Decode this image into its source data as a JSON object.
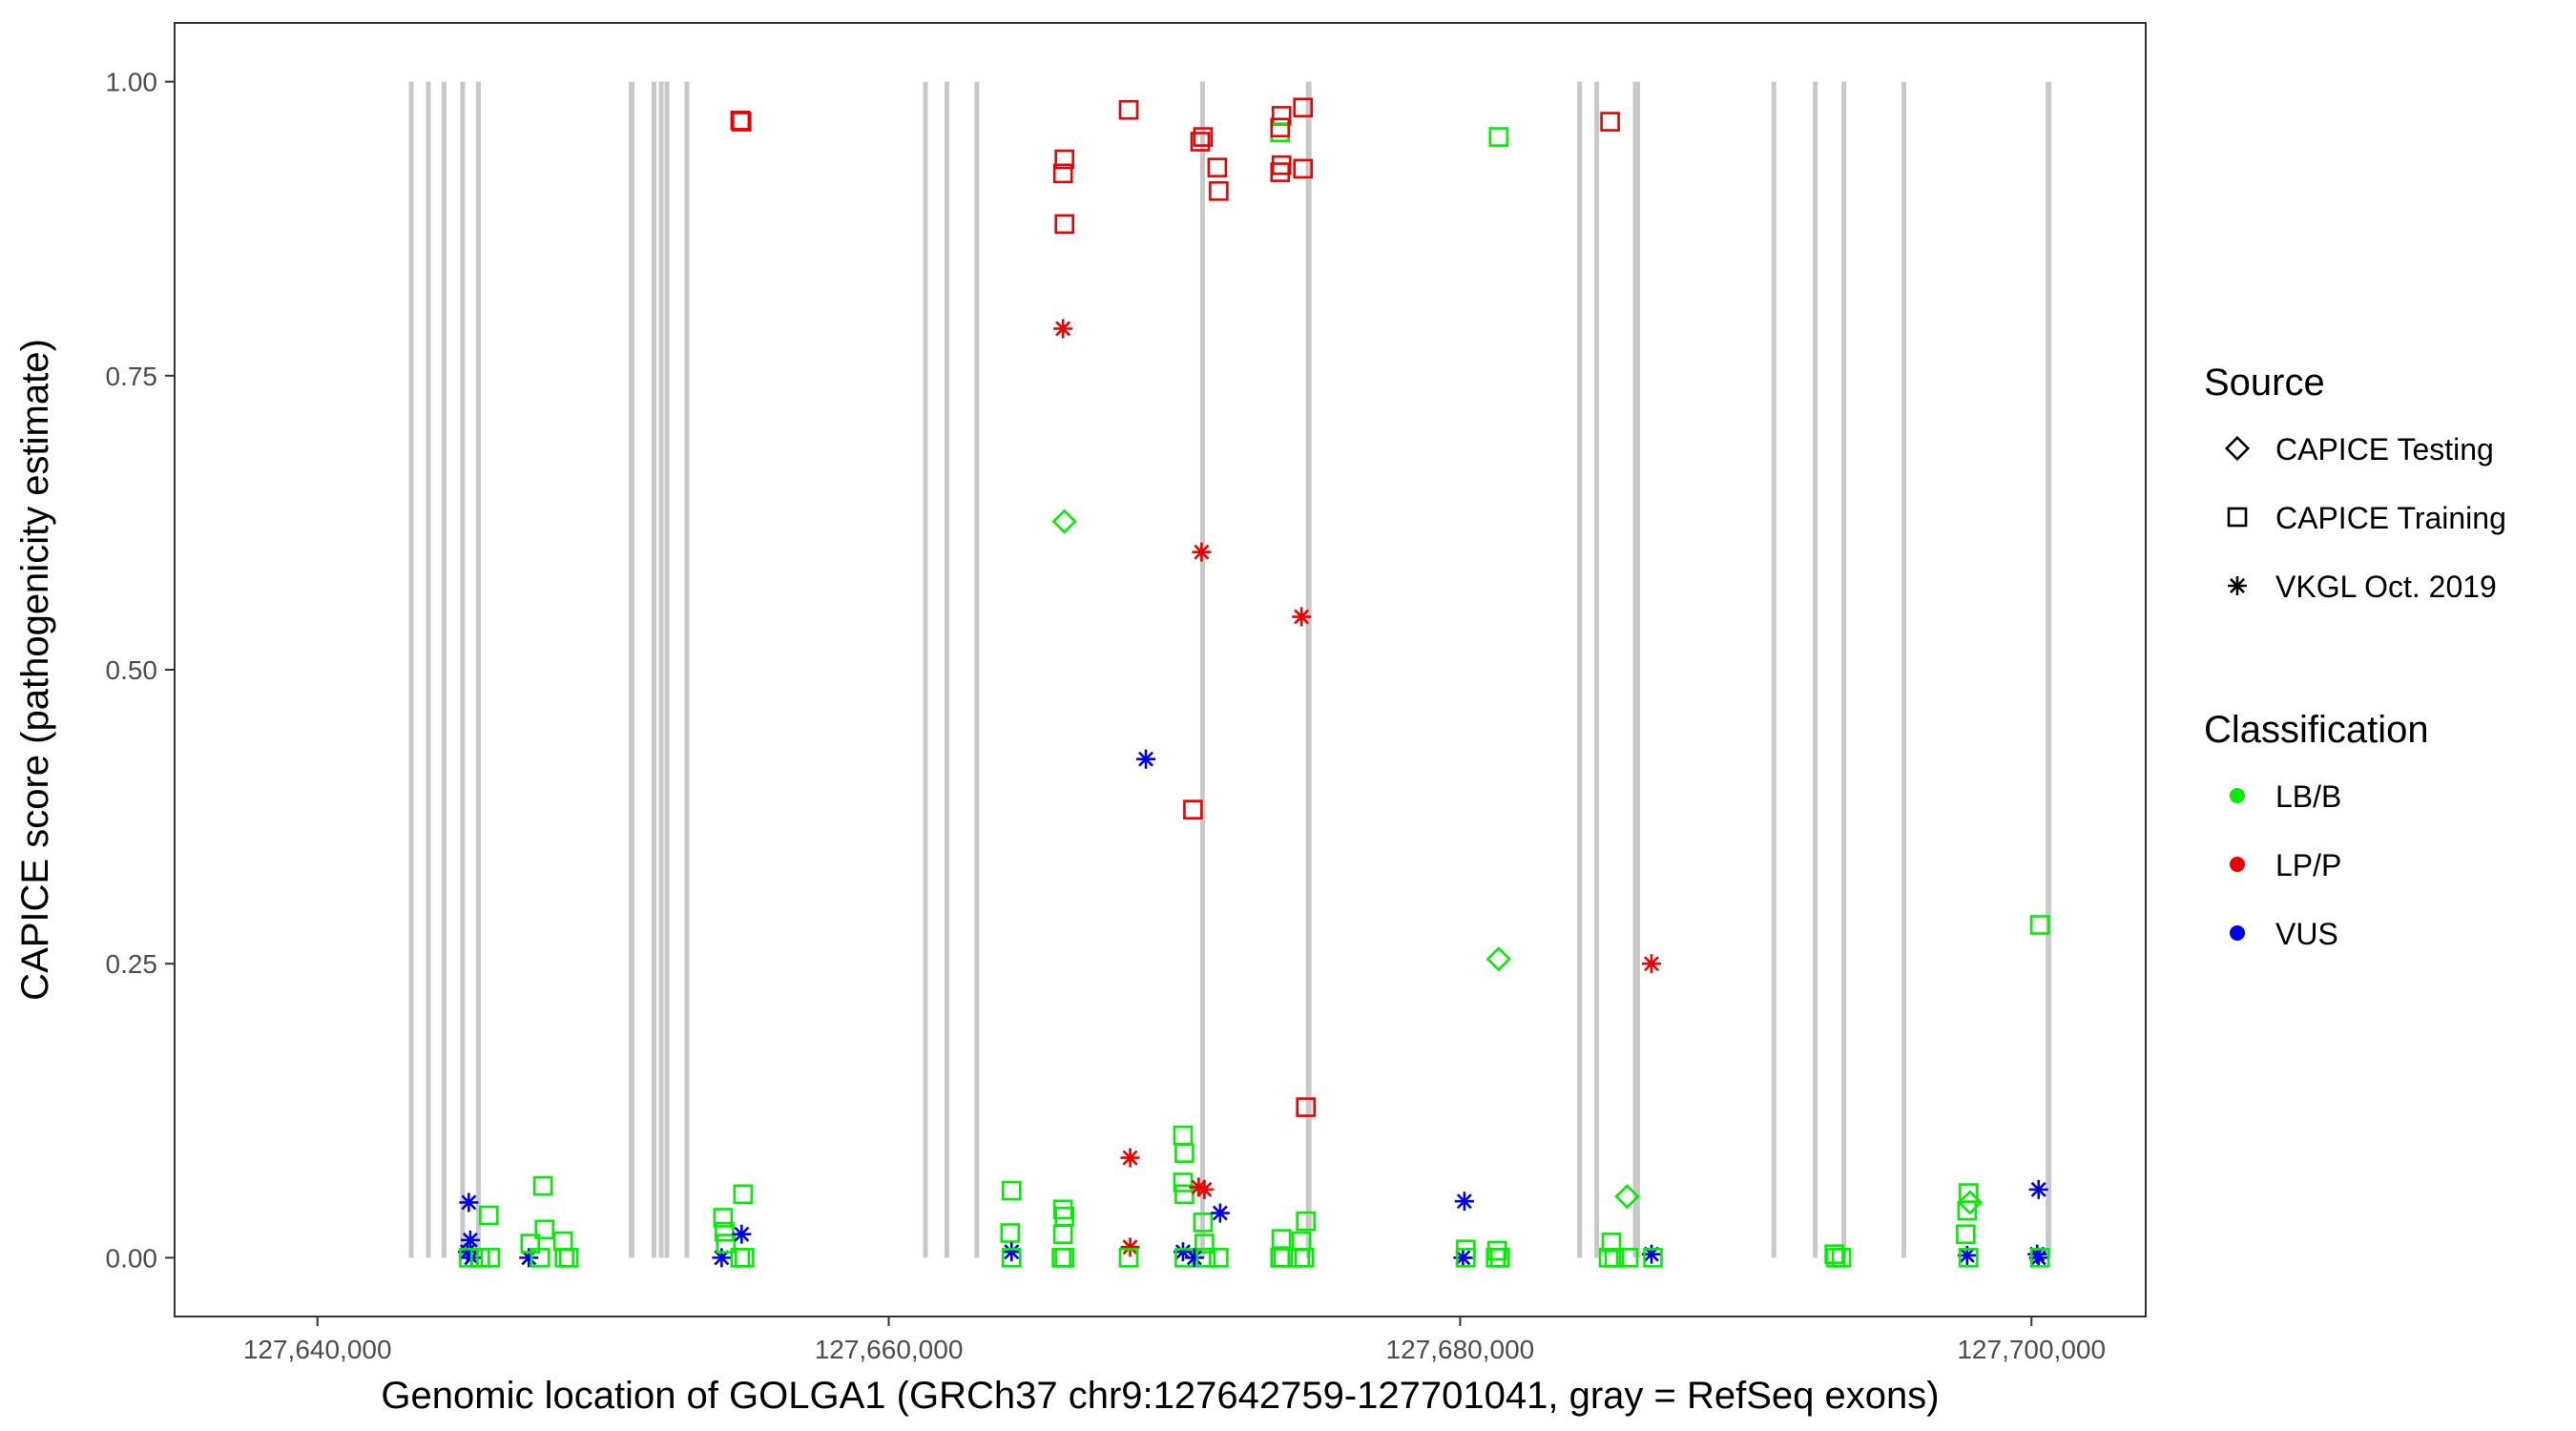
{
  "chart_data": {
    "type": "scatter",
    "xlabel": "Genomic location of GOLGA1 (GRCh37 chr9:127642759-127701041, gray = RefSeq exons)",
    "ylabel": "CAPICE score (pathogenicity estimate)",
    "xlim": [
      127635000,
      127704000
    ],
    "ylim": [
      -0.05,
      1.05
    ],
    "x_ticks": [
      127640000,
      127660000,
      127680000,
      127700000
    ],
    "x_tick_labels": [
      "127,640,000",
      "127,660,000",
      "127,680,000",
      "127,700,000"
    ],
    "y_ticks": [
      0,
      0.25,
      0.5,
      0.75,
      1.0
    ],
    "y_tick_labels": [
      "0.00",
      "0.25",
      "0.50",
      "0.75",
      "1.00"
    ],
    "grid": false,
    "exon_color": "#c8c8c8",
    "exons": [
      [
        127643200,
        127643300
      ],
      [
        127643800,
        127643900
      ],
      [
        127644350,
        127644450
      ],
      [
        127645000,
        127645100
      ],
      [
        127645550,
        127645650
      ],
      [
        127650900,
        127651100
      ],
      [
        127651700,
        127651800
      ],
      [
        127651950,
        127652050
      ],
      [
        127652150,
        127652250
      ],
      [
        127652850,
        127652950
      ],
      [
        127661200,
        127661300
      ],
      [
        127661950,
        127662050
      ],
      [
        127663000,
        127663100
      ],
      [
        127670900,
        127671050
      ],
      [
        127674600,
        127674800
      ],
      [
        127684100,
        127684250
      ],
      [
        127684700,
        127684800
      ],
      [
        127686050,
        127686300
      ],
      [
        127690900,
        127691000
      ],
      [
        127692350,
        127692450
      ],
      [
        127693350,
        127693450
      ],
      [
        127695450,
        127695550
      ],
      [
        127700500,
        127700700
      ]
    ],
    "legend": {
      "source_title": "Source",
      "source_items": [
        {
          "label": "CAPICE Testing",
          "shape": "diamond"
        },
        {
          "label": "CAPICE Training",
          "shape": "square"
        },
        {
          "label": "VKGL Oct. 2019",
          "shape": "asterisk"
        }
      ],
      "class_title": "Classification",
      "class_items": [
        {
          "label": "LB/B",
          "color": "#00ee00"
        },
        {
          "label": "LP/P",
          "color": "#ee0000"
        },
        {
          "label": "VUS",
          "color": "#0000ee"
        }
      ]
    },
    "colors": {
      "LB/B": "#00ee00",
      "LP/P": "#ee0000",
      "VUS": "#0000ee"
    },
    "points": [
      {
        "x": 127645300,
        "y": 0.047,
        "source": "VKGL Oct. 2019",
        "class": "VUS"
      },
      {
        "x": 127645350,
        "y": 0.015,
        "source": "VKGL Oct. 2019",
        "class": "VUS"
      },
      {
        "x": 127645250,
        "y": 0.005,
        "source": "VKGL Oct. 2019",
        "class": "VUS"
      },
      {
        "x": 127645400,
        "y": 0.0,
        "source": "VKGL Oct. 2019",
        "class": "VUS"
      },
      {
        "x": 127645300,
        "y": 0.0,
        "source": "CAPICE Training",
        "class": "LB/B"
      },
      {
        "x": 127645700,
        "y": 0.0,
        "source": "CAPICE Training",
        "class": "LB/B"
      },
      {
        "x": 127646000,
        "y": 0.036,
        "source": "CAPICE Training",
        "class": "LB/B"
      },
      {
        "x": 127646050,
        "y": 0.0,
        "source": "CAPICE Training",
        "class": "LB/B"
      },
      {
        "x": 127647400,
        "y": 0.0,
        "source": "VKGL Oct. 2019",
        "class": "VUS"
      },
      {
        "x": 127647450,
        "y": 0.012,
        "source": "CAPICE Training",
        "class": "LB/B"
      },
      {
        "x": 127647900,
        "y": 0.061,
        "source": "CAPICE Training",
        "class": "LB/B"
      },
      {
        "x": 127647950,
        "y": 0.024,
        "source": "CAPICE Training",
        "class": "LB/B"
      },
      {
        "x": 127647800,
        "y": 0.0,
        "source": "CAPICE Training",
        "class": "LB/B"
      },
      {
        "x": 127648600,
        "y": 0.014,
        "source": "CAPICE Training",
        "class": "LB/B"
      },
      {
        "x": 127648650,
        "y": 0.0,
        "source": "CAPICE Training",
        "class": "LB/B"
      },
      {
        "x": 127648800,
        "y": 0.0,
        "source": "CAPICE Training",
        "class": "LB/B"
      },
      {
        "x": 127654150,
        "y": 0.0,
        "source": "VKGL Oct. 2019",
        "class": "VUS"
      },
      {
        "x": 127654200,
        "y": 0.034,
        "source": "CAPICE Training",
        "class": "LB/B"
      },
      {
        "x": 127654250,
        "y": 0.022,
        "source": "CAPICE Training",
        "class": "LB/B"
      },
      {
        "x": 127654300,
        "y": 0.012,
        "source": "CAPICE Training",
        "class": "LB/B"
      },
      {
        "x": 127654800,
        "y": 0.967,
        "source": "CAPICE Training",
        "class": "LP/P"
      },
      {
        "x": 127654850,
        "y": 0.966,
        "source": "CAPICE Training",
        "class": "LP/P"
      },
      {
        "x": 127654900,
        "y": 0.054,
        "source": "CAPICE Training",
        "class": "LB/B"
      },
      {
        "x": 127654850,
        "y": 0.02,
        "source": "VKGL Oct. 2019",
        "class": "VUS"
      },
      {
        "x": 127654800,
        "y": 0.0,
        "source": "CAPICE Training",
        "class": "LB/B"
      },
      {
        "x": 127654950,
        "y": 0.0,
        "source": "CAPICE Training",
        "class": "LB/B"
      },
      {
        "x": 127664300,
        "y": 0.057,
        "source": "CAPICE Training",
        "class": "LB/B"
      },
      {
        "x": 127664250,
        "y": 0.021,
        "source": "CAPICE Training",
        "class": "LB/B"
      },
      {
        "x": 127664300,
        "y": 0.005,
        "source": "VKGL Oct. 2019",
        "class": "VUS"
      },
      {
        "x": 127664300,
        "y": 0.0,
        "source": "CAPICE Training",
        "class": "LB/B"
      },
      {
        "x": 127666150,
        "y": 0.934,
        "source": "CAPICE Training",
        "class": "LP/P"
      },
      {
        "x": 127666100,
        "y": 0.922,
        "source": "CAPICE Training",
        "class": "LP/P"
      },
      {
        "x": 127666150,
        "y": 0.879,
        "source": "CAPICE Training",
        "class": "LP/P"
      },
      {
        "x": 127666100,
        "y": 0.79,
        "source": "VKGL Oct. 2019",
        "class": "LP/P"
      },
      {
        "x": 127666150,
        "y": 0.626,
        "source": "CAPICE Testing",
        "class": "LB/B"
      },
      {
        "x": 127666100,
        "y": 0.041,
        "source": "CAPICE Training",
        "class": "LB/B"
      },
      {
        "x": 127666150,
        "y": 0.035,
        "source": "CAPICE Training",
        "class": "LB/B"
      },
      {
        "x": 127666100,
        "y": 0.02,
        "source": "CAPICE Training",
        "class": "LB/B"
      },
      {
        "x": 127666150,
        "y": 0.0,
        "source": "CAPICE Training",
        "class": "LB/B"
      },
      {
        "x": 127666050,
        "y": 0.0,
        "source": "CAPICE Training",
        "class": "LB/B"
      },
      {
        "x": 127668400,
        "y": 0.976,
        "source": "CAPICE Training",
        "class": "LP/P"
      },
      {
        "x": 127668450,
        "y": 0.085,
        "source": "VKGL Oct. 2019",
        "class": "LP/P"
      },
      {
        "x": 127668450,
        "y": 0.009,
        "source": "VKGL Oct. 2019",
        "class": "LP/P"
      },
      {
        "x": 127668400,
        "y": 0.0,
        "source": "CAPICE Training",
        "class": "LB/B"
      },
      {
        "x": 127669000,
        "y": 0.424,
        "source": "VKGL Oct. 2019",
        "class": "VUS"
      },
      {
        "x": 127670300,
        "y": 0.104,
        "source": "CAPICE Training",
        "class": "LB/B"
      },
      {
        "x": 127670350,
        "y": 0.089,
        "source": "CAPICE Training",
        "class": "LB/B"
      },
      {
        "x": 127670300,
        "y": 0.064,
        "source": "CAPICE Training",
        "class": "LB/B"
      },
      {
        "x": 127670350,
        "y": 0.054,
        "source": "CAPICE Training",
        "class": "LB/B"
      },
      {
        "x": 127670300,
        "y": 0.005,
        "source": "VKGL Oct. 2019",
        "class": "VUS"
      },
      {
        "x": 127670350,
        "y": 0.0,
        "source": "CAPICE Training",
        "class": "LB/B"
      },
      {
        "x": 127670650,
        "y": 0.381,
        "source": "CAPICE Training",
        "class": "LP/P"
      },
      {
        "x": 127670900,
        "y": 0.949,
        "source": "CAPICE Training",
        "class": "LP/P"
      },
      {
        "x": 127671000,
        "y": 0.953,
        "source": "CAPICE Training",
        "class": "LP/P"
      },
      {
        "x": 127670950,
        "y": 0.6,
        "source": "VKGL Oct. 2019",
        "class": "LP/P"
      },
      {
        "x": 127670850,
        "y": 0.06,
        "source": "VKGL Oct. 2019",
        "class": "LP/P"
      },
      {
        "x": 127671050,
        "y": 0.058,
        "source": "VKGL Oct. 2019",
        "class": "LP/P"
      },
      {
        "x": 127671000,
        "y": 0.03,
        "source": "CAPICE Training",
        "class": "LB/B"
      },
      {
        "x": 127671050,
        "y": 0.012,
        "source": "CAPICE Training",
        "class": "LB/B"
      },
      {
        "x": 127670700,
        "y": 0.0,
        "source": "VKGL Oct. 2019",
        "class": "VUS"
      },
      {
        "x": 127671100,
        "y": 0.0,
        "source": "CAPICE Training",
        "class": "LB/B"
      },
      {
        "x": 127671500,
        "y": 0.927,
        "source": "CAPICE Training",
        "class": "LP/P"
      },
      {
        "x": 127671550,
        "y": 0.907,
        "source": "CAPICE Training",
        "class": "LP/P"
      },
      {
        "x": 127671600,
        "y": 0.038,
        "source": "VKGL Oct. 2019",
        "class": "VUS"
      },
      {
        "x": 127671550,
        "y": 0.0,
        "source": "CAPICE Training",
        "class": "LB/B"
      },
      {
        "x": 127673750,
        "y": 0.971,
        "source": "CAPICE Training",
        "class": "LP/P"
      },
      {
        "x": 127673700,
        "y": 0.957,
        "source": "CAPICE Training",
        "class": "LB/B"
      },
      {
        "x": 127673700,
        "y": 0.961,
        "source": "CAPICE Training",
        "class": "LP/P"
      },
      {
        "x": 127673750,
        "y": 0.929,
        "source": "CAPICE Training",
        "class": "LP/P"
      },
      {
        "x": 127673700,
        "y": 0.923,
        "source": "CAPICE Training",
        "class": "LP/P"
      },
      {
        "x": 127673750,
        "y": 0.016,
        "source": "CAPICE Training",
        "class": "LB/B"
      },
      {
        "x": 127673700,
        "y": 0.0,
        "source": "CAPICE Training",
        "class": "LB/B"
      },
      {
        "x": 127673800,
        "y": 0.0,
        "source": "CAPICE Training",
        "class": "LB/B"
      },
      {
        "x": 127674500,
        "y": 0.978,
        "source": "CAPICE Training",
        "class": "LP/P"
      },
      {
        "x": 127674500,
        "y": 0.926,
        "source": "CAPICE Training",
        "class": "LP/P"
      },
      {
        "x": 127674450,
        "y": 0.545,
        "source": "VKGL Oct. 2019",
        "class": "LP/P"
      },
      {
        "x": 127674600,
        "y": 0.128,
        "source": "CAPICE Training",
        "class": "LP/P"
      },
      {
        "x": 127674600,
        "y": 0.031,
        "source": "CAPICE Training",
        "class": "LB/B"
      },
      {
        "x": 127674450,
        "y": 0.014,
        "source": "CAPICE Training",
        "class": "LB/B"
      },
      {
        "x": 127674400,
        "y": 0.0,
        "source": "CAPICE Training",
        "class": "LB/B"
      },
      {
        "x": 127674550,
        "y": 0.0,
        "source": "CAPICE Training",
        "class": "LB/B"
      },
      {
        "x": 127680150,
        "y": 0.048,
        "source": "VKGL Oct. 2019",
        "class": "VUS"
      },
      {
        "x": 127680200,
        "y": 0.007,
        "source": "CAPICE Training",
        "class": "LB/B"
      },
      {
        "x": 127680100,
        "y": 0.0,
        "source": "VKGL Oct. 2019",
        "class": "VUS"
      },
      {
        "x": 127680200,
        "y": 0.0,
        "source": "CAPICE Training",
        "class": "LB/B"
      },
      {
        "x": 127681350,
        "y": 0.953,
        "source": "CAPICE Training",
        "class": "LB/B"
      },
      {
        "x": 127681350,
        "y": 0.254,
        "source": "CAPICE Testing",
        "class": "LB/B"
      },
      {
        "x": 127681300,
        "y": 0.006,
        "source": "CAPICE Training",
        "class": "LB/B"
      },
      {
        "x": 127681250,
        "y": 0.0,
        "source": "CAPICE Training",
        "class": "LB/B"
      },
      {
        "x": 127681400,
        "y": 0.0,
        "source": "CAPICE Training",
        "class": "LB/B"
      },
      {
        "x": 127685250,
        "y": 0.966,
        "source": "CAPICE Training",
        "class": "LP/P"
      },
      {
        "x": 127685300,
        "y": 0.013,
        "source": "CAPICE Training",
        "class": "LB/B"
      },
      {
        "x": 127685200,
        "y": 0.0,
        "source": "CAPICE Training",
        "class": "LB/B"
      },
      {
        "x": 127685400,
        "y": 0.0,
        "source": "CAPICE Training",
        "class": "LB/B"
      },
      {
        "x": 127685850,
        "y": 0.052,
        "source": "CAPICE Testing",
        "class": "LB/B"
      },
      {
        "x": 127685900,
        "y": 0.0,
        "source": "CAPICE Training",
        "class": "LB/B"
      },
      {
        "x": 127686700,
        "y": 0.25,
        "source": "VKGL Oct. 2019",
        "class": "LP/P"
      },
      {
        "x": 127686700,
        "y": 0.003,
        "source": "VKGL Oct. 2019",
        "class": "VUS"
      },
      {
        "x": 127686750,
        "y": 0.0,
        "source": "CAPICE Training",
        "class": "LB/B"
      },
      {
        "x": 127693100,
        "y": 0.003,
        "source": "CAPICE Training",
        "class": "LB/B"
      },
      {
        "x": 127693150,
        "y": 0.0,
        "source": "CAPICE Training",
        "class": "LB/B"
      },
      {
        "x": 127693350,
        "y": 0.0,
        "source": "CAPICE Training",
        "class": "LB/B"
      },
      {
        "x": 127697800,
        "y": 0.055,
        "source": "CAPICE Training",
        "class": "LB/B"
      },
      {
        "x": 127697850,
        "y": 0.047,
        "source": "CAPICE Testing",
        "class": "LB/B"
      },
      {
        "x": 127697750,
        "y": 0.04,
        "source": "CAPICE Training",
        "class": "LB/B"
      },
      {
        "x": 127697700,
        "y": 0.02,
        "source": "CAPICE Training",
        "class": "LB/B"
      },
      {
        "x": 127697750,
        "y": 0.002,
        "source": "VKGL Oct. 2019",
        "class": "VUS"
      },
      {
        "x": 127697800,
        "y": 0.0,
        "source": "CAPICE Training",
        "class": "LB/B"
      },
      {
        "x": 127700300,
        "y": 0.283,
        "source": "CAPICE Training",
        "class": "LB/B"
      },
      {
        "x": 127700250,
        "y": 0.058,
        "source": "VKGL Oct. 2019",
        "class": "VUS"
      },
      {
        "x": 127700200,
        "y": 0.003,
        "source": "VKGL Oct. 2019",
        "class": "VUS"
      },
      {
        "x": 127700250,
        "y": 0.0,
        "source": "VKGL Oct. 2019",
        "class": "VUS"
      },
      {
        "x": 127700300,
        "y": 0.0,
        "source": "CAPICE Training",
        "class": "LB/B"
      }
    ]
  }
}
